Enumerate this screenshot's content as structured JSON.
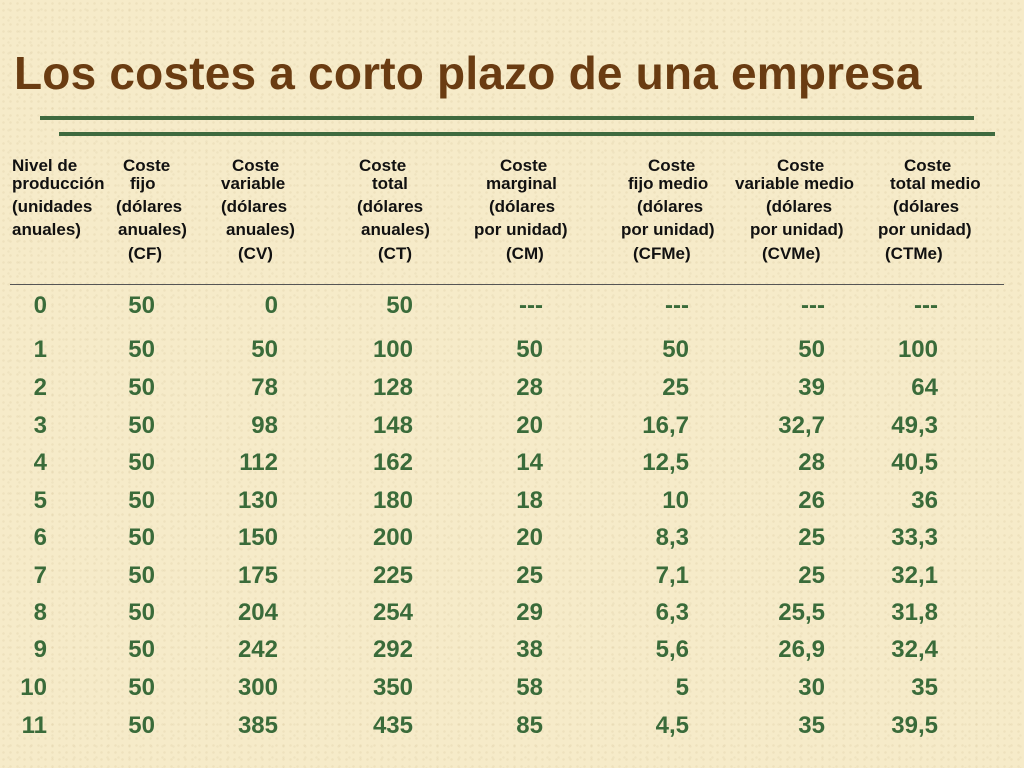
{
  "title": "Los costes a corto plazo de una empresa",
  "columns": [
    {
      "lines": [
        "Nivel de",
        "producción",
        "(unidades",
        "anuales)",
        ""
      ]
    },
    {
      "lines": [
        "Coste",
        "fijo",
        "(dólares",
        "anuales)",
        "(CF)"
      ]
    },
    {
      "lines": [
        "Coste",
        "variable",
        "(dólares",
        "anuales)",
        "(CV)"
      ]
    },
    {
      "lines": [
        "Coste",
        "total",
        "(dólares",
        "anuales)",
        "(CT)"
      ]
    },
    {
      "lines": [
        "Coste",
        "marginal",
        "(dólares",
        "por unidad)",
        "(CM)"
      ]
    },
    {
      "lines": [
        "Coste",
        "fijo medio",
        "(dólares",
        "por unidad)",
        "(CFMe)"
      ]
    },
    {
      "lines": [
        "Coste",
        "variable medio",
        "(dólares",
        "por unidad)",
        "(CVMe)"
      ]
    },
    {
      "lines": [
        "Coste",
        "total medio",
        "(dólares",
        "por unidad)",
        "(CTMe)"
      ]
    }
  ],
  "rows": [
    [
      "0",
      "50",
      "0",
      "50",
      "---",
      "---",
      "---",
      "---"
    ],
    [
      "1",
      "50",
      "50",
      "100",
      "50",
      "50",
      "50",
      "100"
    ],
    [
      "2",
      "50",
      "78",
      "128",
      "28",
      "25",
      "39",
      "64"
    ],
    [
      "3",
      "50",
      "98",
      "148",
      "20",
      "16,7",
      "32,7",
      "49,3"
    ],
    [
      "4",
      "50",
      "112",
      "162",
      "14",
      "12,5",
      "28",
      "40,5"
    ],
    [
      "5",
      "50",
      "130",
      "180",
      "18",
      "10",
      "26",
      "36"
    ],
    [
      "6",
      "50",
      "150",
      "200",
      "20",
      "8,3",
      "25",
      "33,3"
    ],
    [
      "7",
      "50",
      "175",
      "225",
      "25",
      "7,1",
      "25",
      "32,1"
    ],
    [
      "8",
      "50",
      "204",
      "254",
      "29",
      "6,3",
      "25,5",
      "31,8"
    ],
    [
      "9",
      "50",
      "242",
      "292",
      "38",
      "5,6",
      "26,9",
      "32,4"
    ],
    [
      "10",
      "50",
      "300",
      "350",
      "58",
      "5",
      "30",
      "35"
    ],
    [
      "11",
      "50",
      "385",
      "435",
      "85",
      "4,5",
      "35",
      "39,5"
    ]
  ]
}
